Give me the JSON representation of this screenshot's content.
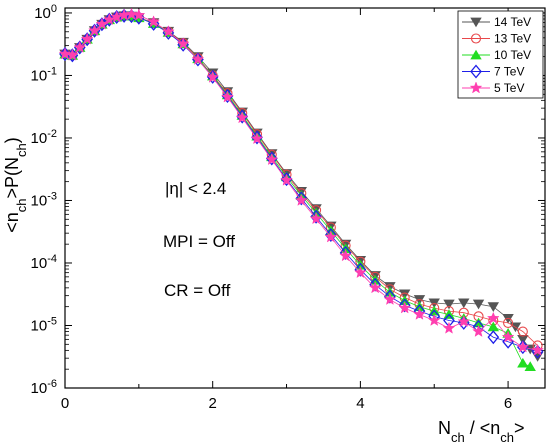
{
  "chart_data": {
    "type": "scatter",
    "xlabel_main": "N",
    "xlabel_main_sub": "ch",
    "xlabel_sep": " / <n",
    "xlabel_sep_sub": "ch",
    "xlabel_end": ">",
    "ylabel_a": "<n",
    "ylabel_a_sub": "ch",
    "ylabel_b": ">P(N",
    "ylabel_b_sub": "ch",
    "ylabel_c": ")",
    "xlim": [
      0,
      6.5
    ],
    "ylim": [
      1e-06,
      1.2
    ],
    "yscale": "log",
    "x_ticks": [
      0,
      2,
      4,
      6
    ],
    "x_tick_labels": [
      "0",
      "2",
      "4",
      "6"
    ],
    "y_ticks": [
      1,
      0.1,
      0.01,
      0.001,
      0.0001,
      1e-05,
      1e-06
    ],
    "y_tick_labels": [
      {
        "base": "10",
        "exp": "0"
      },
      {
        "base": "10",
        "exp": "-1"
      },
      {
        "base": "10",
        "exp": "-2"
      },
      {
        "base": "10",
        "exp": "-3"
      },
      {
        "base": "10",
        "exp": "-4"
      },
      {
        "base": "10",
        "exp": "-5"
      },
      {
        "base": "10",
        "exp": "-6"
      }
    ],
    "annotations": [
      "|η| < 2.4",
      "MPI = Off",
      "CR = Off"
    ],
    "legend_position": "top-right",
    "series": [
      {
        "name": "14 TeV",
        "color": "#555555",
        "marker": "triangle-down-filled",
        "x": [
          0.0,
          0.1,
          0.2,
          0.3,
          0.4,
          0.5,
          0.6,
          0.7,
          0.8,
          0.9,
          1.0,
          1.2,
          1.4,
          1.6,
          1.8,
          2.0,
          2.2,
          2.4,
          2.6,
          2.8,
          3.0,
          3.2,
          3.4,
          3.6,
          3.8,
          4.0,
          4.2,
          4.4,
          4.6,
          4.8,
          5.0,
          5.2,
          5.4,
          5.6,
          5.8,
          6.0,
          6.1,
          6.2,
          6.3,
          6.4
        ],
        "y": [
          0.22,
          0.21,
          0.28,
          0.38,
          0.52,
          0.66,
          0.78,
          0.86,
          0.9,
          0.89,
          0.84,
          0.7,
          0.51,
          0.34,
          0.2,
          0.11,
          0.055,
          0.026,
          0.012,
          0.0056,
          0.0027,
          0.0014,
          0.00074,
          0.00039,
          0.0002,
          0.00011,
          6.3e-05,
          4.2e-05,
          3.2e-05,
          2.6e-05,
          2.3e-05,
          2.2e-05,
          2.3e-05,
          2.2e-05,
          2e-05,
          1.3e-05,
          9.5e-06,
          6e-06,
          4.2e-06,
          3.2e-06
        ]
      },
      {
        "name": "13 TeV",
        "color": "#e8474a",
        "marker": "circle-open",
        "x": [
          0.0,
          0.1,
          0.2,
          0.3,
          0.4,
          0.5,
          0.6,
          0.7,
          0.8,
          0.9,
          1.0,
          1.2,
          1.4,
          1.6,
          1.8,
          2.0,
          2.2,
          2.4,
          2.6,
          2.8,
          3.0,
          3.2,
          3.4,
          3.6,
          3.8,
          4.0,
          4.2,
          4.4,
          4.6,
          4.8,
          5.0,
          5.2,
          5.4,
          5.6,
          5.8,
          6.0,
          6.2,
          6.4
        ],
        "y": [
          0.22,
          0.21,
          0.28,
          0.38,
          0.52,
          0.66,
          0.78,
          0.86,
          0.9,
          0.89,
          0.84,
          0.69,
          0.5,
          0.33,
          0.19,
          0.1,
          0.052,
          0.025,
          0.0115,
          0.0054,
          0.0026,
          0.0013,
          0.0007,
          0.00037,
          0.00019,
          0.000105,
          6e-05,
          3.8e-05,
          2.8e-05,
          2.2e-05,
          1.9e-05,
          1.7e-05,
          1.6e-05,
          1.4e-05,
          1.2e-05,
          1.1e-05,
          8e-06,
          4.8e-06
        ]
      },
      {
        "name": "10 TeV",
        "color": "#22dd22",
        "marker": "triangle-up-filled",
        "x": [
          0.0,
          0.1,
          0.2,
          0.3,
          0.4,
          0.5,
          0.6,
          0.7,
          0.8,
          0.9,
          1.0,
          1.2,
          1.4,
          1.6,
          1.8,
          2.0,
          2.2,
          2.4,
          2.6,
          2.8,
          3.0,
          3.2,
          3.4,
          3.6,
          3.8,
          4.0,
          4.2,
          4.4,
          4.6,
          4.8,
          5.0,
          5.2,
          5.4,
          5.6,
          5.8,
          6.0,
          6.2,
          6.3
        ],
        "y": [
          0.22,
          0.21,
          0.28,
          0.38,
          0.52,
          0.66,
          0.78,
          0.86,
          0.9,
          0.89,
          0.84,
          0.68,
          0.49,
          0.32,
          0.185,
          0.098,
          0.049,
          0.023,
          0.0107,
          0.005,
          0.0024,
          0.0012,
          0.00063,
          0.00033,
          0.00017,
          9.2e-05,
          5.3e-05,
          3.4e-05,
          2.5e-05,
          2e-05,
          1.7e-05,
          1.5e-05,
          1.3e-05,
          1.1e-05,
          9.5e-06,
          7.5e-06,
          2.5e-06,
          2.2e-06
        ]
      },
      {
        "name": "7 TeV",
        "color": "#1f1fe8",
        "marker": "diamond-open",
        "x": [
          0.0,
          0.1,
          0.2,
          0.3,
          0.4,
          0.5,
          0.6,
          0.7,
          0.8,
          0.9,
          1.0,
          1.2,
          1.4,
          1.6,
          1.8,
          2.0,
          2.2,
          2.4,
          2.6,
          2.8,
          3.0,
          3.2,
          3.4,
          3.6,
          3.8,
          4.0,
          4.2,
          4.4,
          4.6,
          4.8,
          5.0,
          5.2,
          5.4,
          5.6,
          5.8,
          6.0,
          6.2,
          6.4
        ],
        "y": [
          0.22,
          0.21,
          0.28,
          0.38,
          0.52,
          0.66,
          0.78,
          0.86,
          0.9,
          0.89,
          0.84,
          0.67,
          0.48,
          0.31,
          0.18,
          0.095,
          0.047,
          0.022,
          0.0102,
          0.0047,
          0.0022,
          0.00108,
          0.00055,
          0.00028,
          0.000145,
          7.8e-05,
          4.5e-05,
          2.9e-05,
          2.1e-05,
          1.7e-05,
          1.4e-05,
          1.2e-05,
          1.1e-05,
          9.5e-06,
          6.5e-06,
          5.5e-06,
          4.5e-06,
          3.8e-06
        ]
      },
      {
        "name": "5 TeV",
        "color": "#ff3fb0",
        "marker": "star-filled",
        "x": [
          0.0,
          0.1,
          0.2,
          0.3,
          0.4,
          0.5,
          0.6,
          0.7,
          0.8,
          0.9,
          1.0,
          1.2,
          1.4,
          1.6,
          1.8,
          2.0,
          2.2,
          2.4,
          2.6,
          2.8,
          3.0,
          3.2,
          3.4,
          3.6,
          3.8,
          4.0,
          4.2,
          4.4,
          4.6,
          4.8,
          5.0,
          5.2,
          5.4,
          5.6,
          5.8,
          6.0,
          6.2,
          6.4
        ],
        "y": [
          0.22,
          0.21,
          0.28,
          0.38,
          0.52,
          0.66,
          0.78,
          0.86,
          0.92,
          0.95,
          0.92,
          0.72,
          0.5,
          0.32,
          0.18,
          0.093,
          0.045,
          0.021,
          0.0097,
          0.0045,
          0.0021,
          0.001,
          0.00051,
          0.00026,
          0.00013,
          7e-05,
          4e-05,
          2.6e-05,
          1.9e-05,
          1.5e-05,
          1.2e-05,
          9e-06,
          1.15e-05,
          8e-06,
          1.3e-05,
          6.5e-06,
          4.5e-06,
          4e-06
        ]
      }
    ]
  }
}
